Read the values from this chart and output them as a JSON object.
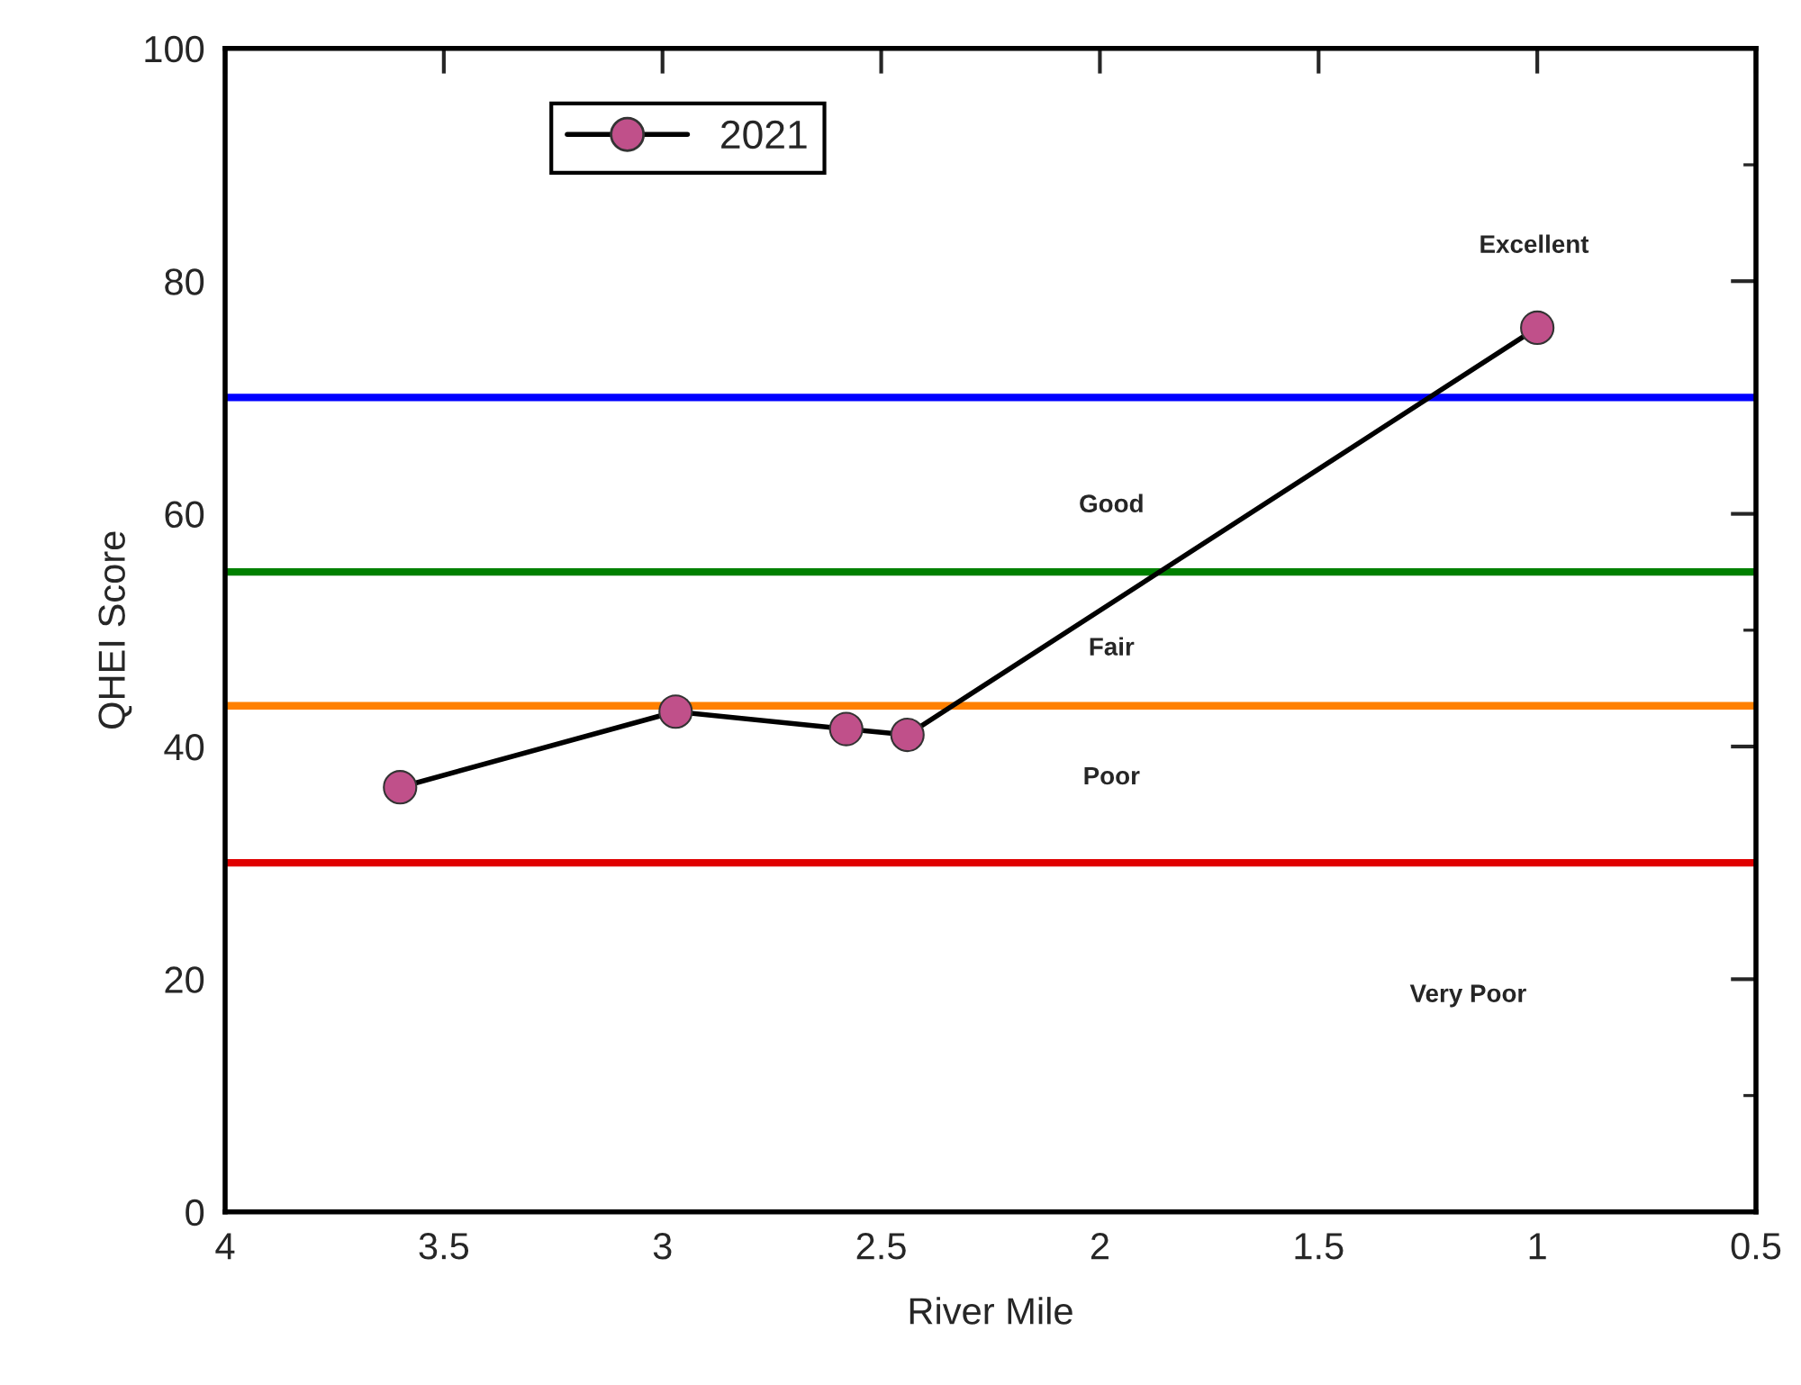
{
  "chart_data": {
    "type": "line",
    "xlabel": "River Mile",
    "ylabel": "QHEI Score",
    "x": [
      3.6,
      2.97,
      2.58,
      2.44,
      1.0
    ],
    "series": [
      {
        "name": "2021",
        "color": "#c0508a",
        "values": [
          36.5,
          43.0,
          41.5,
          41.0,
          76.0
        ]
      }
    ],
    "xlim": [
      4,
      0.5
    ],
    "xticks": [
      4,
      3.5,
      3,
      2.5,
      2,
      1.5,
      1,
      0.5
    ],
    "ylim": [
      0,
      100
    ],
    "yticks": [
      0,
      20,
      40,
      60,
      80,
      100
    ],
    "ref_lines": [
      {
        "axis": "y",
        "value": 70,
        "color": "#0000ff"
      },
      {
        "axis": "y",
        "value": 55,
        "color": "#008000"
      },
      {
        "axis": "y",
        "value": 43.5,
        "color": "#ff8000"
      },
      {
        "axis": "y",
        "value": 30,
        "color": "#e00000"
      }
    ],
    "annotations": [
      "Excellent",
      "Good",
      "Fair",
      "Poor",
      "Very Poor"
    ],
    "marker": "circle",
    "line_style": "solid",
    "grid": false,
    "legend": "top left"
  }
}
